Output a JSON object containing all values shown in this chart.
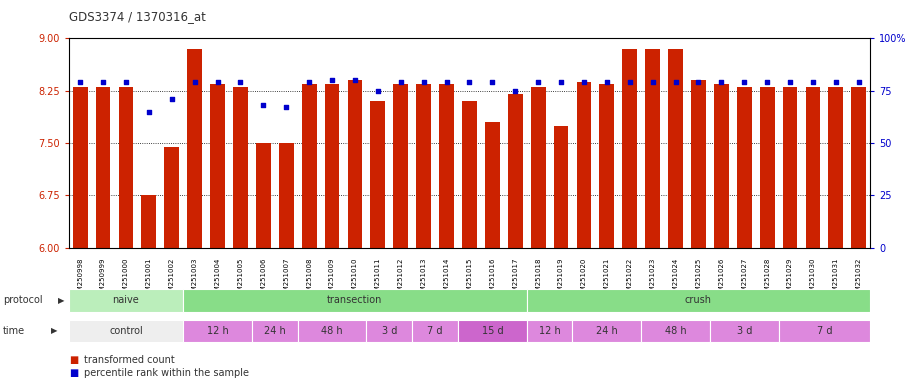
{
  "title": "GDS3374 / 1370316_at",
  "samples": [
    "GSM250998",
    "GSM250999",
    "GSM251000",
    "GSM251001",
    "GSM251002",
    "GSM251003",
    "GSM251004",
    "GSM251005",
    "GSM251006",
    "GSM251007",
    "GSM251008",
    "GSM251009",
    "GSM251010",
    "GSM251011",
    "GSM251012",
    "GSM251013",
    "GSM251014",
    "GSM251015",
    "GSM251016",
    "GSM251017",
    "GSM251018",
    "GSM251019",
    "GSM251020",
    "GSM251021",
    "GSM251022",
    "GSM251023",
    "GSM251024",
    "GSM251025",
    "GSM251026",
    "GSM251027",
    "GSM251028",
    "GSM251029",
    "GSM251030",
    "GSM251031",
    "GSM251032"
  ],
  "bar_values": [
    8.3,
    8.3,
    8.3,
    6.75,
    7.45,
    8.85,
    8.35,
    8.3,
    7.5,
    7.5,
    8.35,
    8.35,
    8.4,
    8.1,
    8.35,
    8.35,
    8.35,
    8.1,
    7.8,
    8.2,
    8.3,
    7.75,
    8.38,
    8.35,
    8.85,
    8.85,
    8.85,
    8.4,
    8.35,
    8.3,
    8.3,
    8.3,
    8.3,
    8.3,
    8.3
  ],
  "percentile_values": [
    79,
    79,
    79,
    65,
    71,
    79,
    79,
    79,
    68,
    67,
    79,
    80,
    80,
    75,
    79,
    79,
    79,
    79,
    79,
    75,
    79,
    79,
    79,
    79,
    79,
    79,
    79,
    79,
    79,
    79,
    79,
    79,
    79,
    79,
    79
  ],
  "ylim_left": [
    6,
    9
  ],
  "ylim_right": [
    0,
    100
  ],
  "yticks_left": [
    6,
    6.75,
    7.5,
    8.25,
    9
  ],
  "yticks_right": [
    0,
    25,
    50,
    75,
    100
  ],
  "bar_color": "#cc2200",
  "dot_color": "#0000cc",
  "bg_color": "#ffffff",
  "proto_groups": [
    {
      "label": "naive",
      "start": 0,
      "end": 5,
      "color": "#bbeebb"
    },
    {
      "label": "transection",
      "start": 5,
      "end": 20,
      "color": "#88dd88"
    },
    {
      "label": "crush",
      "start": 20,
      "end": 35,
      "color": "#88dd88"
    }
  ],
  "time_groups": [
    {
      "label": "control",
      "start": 0,
      "end": 5,
      "color": "#eeeeee"
    },
    {
      "label": "12 h",
      "start": 5,
      "end": 8,
      "color": "#dd88dd"
    },
    {
      "label": "24 h",
      "start": 8,
      "end": 10,
      "color": "#dd88dd"
    },
    {
      "label": "48 h",
      "start": 10,
      "end": 13,
      "color": "#dd88dd"
    },
    {
      "label": "3 d",
      "start": 13,
      "end": 15,
      "color": "#dd88dd"
    },
    {
      "label": "7 d",
      "start": 15,
      "end": 17,
      "color": "#dd88dd"
    },
    {
      "label": "15 d",
      "start": 17,
      "end": 20,
      "color": "#cc66cc"
    },
    {
      "label": "12 h",
      "start": 20,
      "end": 22,
      "color": "#dd88dd"
    },
    {
      "label": "24 h",
      "start": 22,
      "end": 25,
      "color": "#dd88dd"
    },
    {
      "label": "48 h",
      "start": 25,
      "end": 28,
      "color": "#dd88dd"
    },
    {
      "label": "3 d",
      "start": 28,
      "end": 31,
      "color": "#dd88dd"
    },
    {
      "label": "7 d",
      "start": 31,
      "end": 35,
      "color": "#dd88dd"
    }
  ]
}
